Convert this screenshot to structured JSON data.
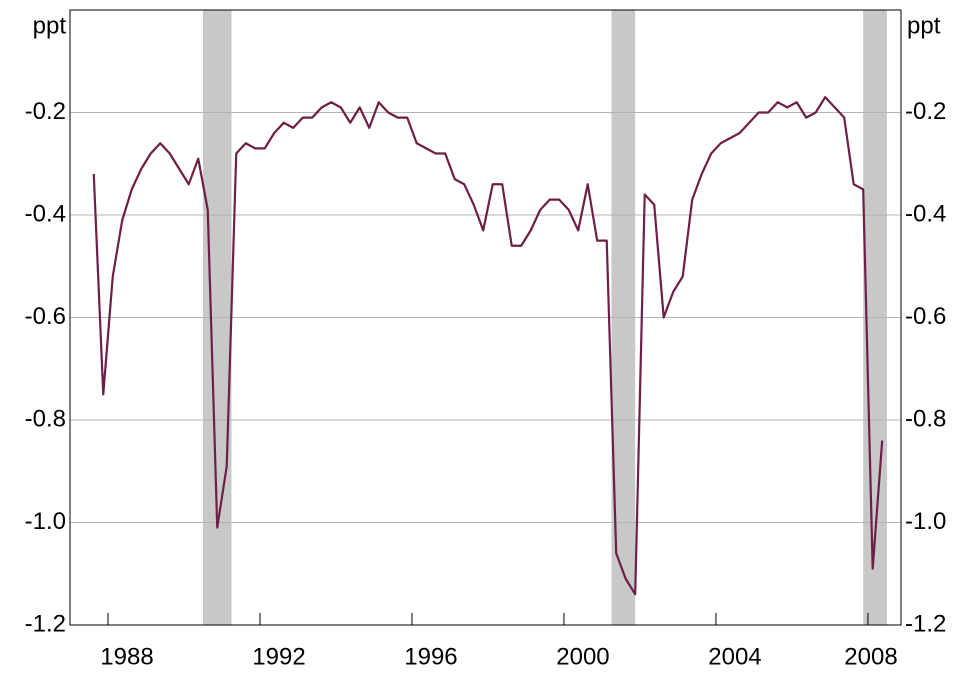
{
  "chart_data": {
    "type": "line",
    "y_unit_left": "ppt",
    "y_unit_right": "ppt",
    "x": [
      1987.625,
      1987.875,
      1988.125,
      1988.375,
      1988.625,
      1988.875,
      1989.125,
      1989.375,
      1989.625,
      1989.875,
      1990.125,
      1990.375,
      1990.625,
      1990.875,
      1991.125,
      1991.375,
      1991.625,
      1991.875,
      1992.125,
      1992.375,
      1992.625,
      1992.875,
      1993.125,
      1993.375,
      1993.625,
      1993.875,
      1994.125,
      1994.375,
      1994.625,
      1994.875,
      1995.125,
      1995.375,
      1995.625,
      1995.875,
      1996.125,
      1996.375,
      1996.625,
      1996.875,
      1997.125,
      1997.375,
      1997.625,
      1997.875,
      1998.125,
      1998.375,
      1998.625,
      1998.875,
      1999.125,
      1999.375,
      1999.625,
      1999.875,
      2000.125,
      2000.375,
      2000.625,
      2000.875,
      2001.125,
      2001.375,
      2001.625,
      2001.875,
      2002.125,
      2002.375,
      2002.625,
      2002.875,
      2003.125,
      2003.375,
      2003.625,
      2003.875,
      2004.125,
      2004.375,
      2004.625,
      2004.875,
      2005.125,
      2005.375,
      2005.625,
      2005.875,
      2006.125,
      2006.375,
      2006.625,
      2006.875,
      2007.125,
      2007.375,
      2007.625,
      2007.875,
      2008.125,
      2008.375
    ],
    "series": [
      {
        "color": "#6e1f45",
        "values": [
          -0.32,
          -0.75,
          -0.52,
          -0.41,
          -0.35,
          -0.31,
          -0.28,
          -0.26,
          -0.28,
          -0.31,
          -0.34,
          -0.29,
          -0.39,
          -1.01,
          -0.89,
          -0.28,
          -0.26,
          -0.27,
          -0.27,
          -0.24,
          -0.22,
          -0.23,
          -0.21,
          -0.21,
          -0.19,
          -0.18,
          -0.19,
          -0.22,
          -0.19,
          -0.23,
          -0.18,
          -0.2,
          -0.21,
          -0.21,
          -0.26,
          -0.27,
          -0.28,
          -0.28,
          -0.33,
          -0.34,
          -0.38,
          -0.43,
          -0.34,
          -0.34,
          -0.46,
          -0.46,
          -0.43,
          -0.39,
          -0.37,
          -0.37,
          -0.39,
          -0.43,
          -0.34,
          -0.45,
          -0.45,
          -1.06,
          -1.11,
          -1.14,
          -0.36,
          -0.38,
          -0.6,
          -0.55,
          -0.52,
          -0.37,
          -0.32,
          -0.28,
          -0.26,
          -0.25,
          -0.24,
          -0.22,
          -0.2,
          -0.2,
          -0.18,
          -0.19,
          -0.18,
          -0.21,
          -0.2,
          -0.17,
          -0.19,
          -0.21,
          -0.34,
          -0.35,
          -1.09,
          -0.84
        ]
      }
    ],
    "shaded_periods": [
      [
        1990.5,
        1991.25
      ],
      [
        2001.25,
        2001.875
      ],
      [
        2007.875,
        2008.5
      ]
    ],
    "shade_color": "#c8c8c8",
    "xlim": [
      1987,
      2008.87
    ],
    "xticks": [
      1988,
      1992,
      1996,
      2000,
      2004,
      2008
    ],
    "ylim": [
      -1.2,
      0
    ],
    "yticks": [
      -0.2,
      -0.4,
      -0.6,
      -0.8,
      {
        "value": -1.0,
        "label": "-1.0"
      },
      -1.2
    ],
    "grid": true
  }
}
